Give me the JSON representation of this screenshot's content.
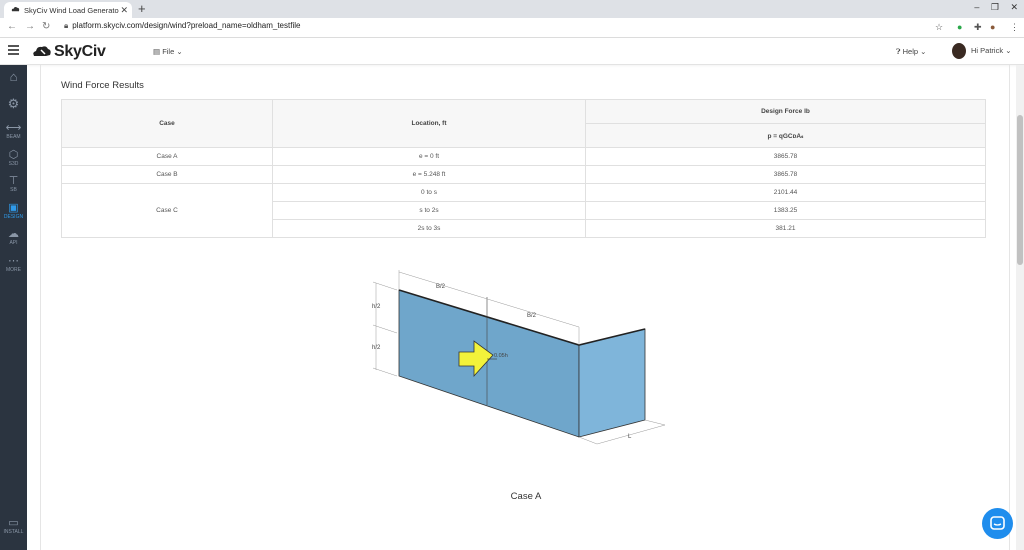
{
  "browser": {
    "tab_title": "SkyCiv Wind Load Generato",
    "url": "platform.skyciv.com/design/wind?preload_name=oldham_testfile"
  },
  "app": {
    "logo_text": "SkyCiv",
    "file_menu": "File",
    "help_menu": "Help",
    "user_menu": "Hi Patrick"
  },
  "sidebar": {
    "items": [
      {
        "label": "",
        "icon": "home-icon"
      },
      {
        "label": "",
        "icon": "gear-icon"
      },
      {
        "label": "BEAM",
        "icon": "beam-icon"
      },
      {
        "label": "S3D",
        "icon": "cube-icon"
      },
      {
        "label": "SB",
        "icon": "section-icon"
      },
      {
        "label": "DESIGN",
        "icon": "document-icon"
      },
      {
        "label": "API",
        "icon": "cloud-icon"
      },
      {
        "label": "MORE",
        "icon": "more-icon"
      },
      {
        "label": "INSTALL",
        "icon": "monitor-icon"
      }
    ]
  },
  "results": {
    "title": "Wind Force Results",
    "headers": {
      "case": "Case",
      "location": "Location, ft",
      "design_force": "Design Force lb",
      "formula": "p = qGCᴅAₛ"
    },
    "rows": [
      {
        "case": "Case A",
        "location": "e = 0 ft",
        "force": "3865.78"
      },
      {
        "case": "Case B",
        "location": "e = 5.248 ft",
        "force": "3865.78"
      },
      {
        "case": "Case C",
        "location": "0 to s",
        "force": "2101.44"
      },
      {
        "case": "",
        "location": "s to 2s",
        "force": "1383.25"
      },
      {
        "case": "",
        "location": "2s to 3s",
        "force": "381.21"
      }
    ]
  },
  "diagram": {
    "label_b2_top": "B/2",
    "label_b2_mid": "B/2",
    "label_h2_top": "h/2",
    "label_h2_bottom": "h/2",
    "label_force": "0.05h",
    "label_l": "L",
    "caption": "Case A"
  },
  "colors": {
    "accent": "#2f9bea",
    "wall_front": "#6fa6cb",
    "wall_side": "#7fb5da",
    "arrow": "#f2f23a",
    "sidebar_bg": "#2b3440"
  }
}
